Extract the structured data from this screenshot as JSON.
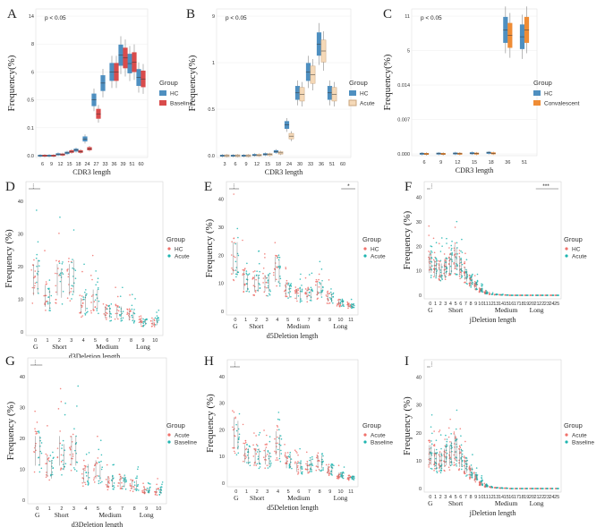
{
  "figure": {
    "colors": {
      "hc_blue": "#4e8fc0",
      "baseline_red": "#d94b4b",
      "acute_beige": "#f5d9b8",
      "conv_orange": "#ef8c35",
      "pt_red": "#f0706a",
      "pt_teal": "#1fb5b0"
    }
  },
  "chart_data": [
    {
      "id": "A",
      "letter": "A",
      "type": "boxplot",
      "title": "",
      "annotation": "p < 0.05",
      "xlabel": "CDR3 length",
      "ylabel": "Frequency(%)",
      "categories": [
        "6",
        "9",
        "12",
        "15",
        "18",
        "24",
        "27",
        "33",
        "36",
        "39",
        "51",
        "60"
      ],
      "yticks": [
        "0.0",
        "0.1",
        "0.5",
        "6",
        "8",
        "14"
      ],
      "legend": {
        "title": "Group",
        "entries": [
          "HC",
          "Baseline"
        ]
      },
      "series": [
        {
          "name": "HC",
          "color": "#4e8fc0",
          "medians": [
            0.0,
            0.0,
            0.01,
            0.02,
            0.04,
            0.12,
            0.4,
            0.52,
            0.6,
            0.72,
            0.66,
            0.56
          ]
        },
        {
          "name": "Baseline",
          "color": "#d94b4b",
          "medians": [
            0.0,
            0.0,
            0.008,
            0.03,
            0.03,
            0.05,
            0.3,
            null,
            0.6,
            0.7,
            0.67,
            0.55
          ]
        }
      ]
    },
    {
      "id": "B",
      "letter": "B",
      "type": "boxplot",
      "title": "",
      "annotation": "p < 0.05",
      "xlabel": "CDR3 length",
      "ylabel": "Frequency(%)",
      "categories": [
        "3",
        "6",
        "9",
        "12",
        "15",
        "18",
        "24",
        "30",
        "33",
        "36",
        "51",
        "60"
      ],
      "yticks": [
        "0.0",
        "0.5",
        "1",
        "9"
      ],
      "legend": {
        "title": "Group",
        "entries": [
          "HC",
          "Acute"
        ]
      },
      "series": [
        {
          "name": "HC",
          "color": "#4e8fc0",
          "medians": [
            0.0,
            0.0,
            0.0,
            0.005,
            0.01,
            0.03,
            0.22,
            0.45,
            0.6,
            0.8,
            0.45,
            null
          ]
        },
        {
          "name": "Acute",
          "color": "#f5d9b8",
          "medians": [
            0.0,
            0.0,
            0.0,
            0.004,
            0.008,
            0.02,
            0.14,
            0.44,
            0.58,
            0.75,
            0.44,
            null
          ]
        }
      ]
    },
    {
      "id": "C",
      "letter": "C",
      "type": "boxplot",
      "title": "",
      "annotation": "p < 0.05",
      "xlabel": "CDR3 length",
      "ylabel": "Frequency(%)",
      "categories": [
        "6",
        "9",
        "12",
        "15",
        "18",
        "36",
        "51"
      ],
      "yticks": [
        "0.000",
        "0.007",
        "0.014",
        "5",
        "11"
      ],
      "legend": {
        "title": "Group",
        "entries": [
          "HC",
          "Convalescent"
        ]
      },
      "series": [
        {
          "name": "HC",
          "color": "#4e8fc0",
          "medians": [
            0.001,
            0.002,
            0.003,
            0.005,
            0.008,
            0.9,
            0.85
          ]
        },
        {
          "name": "Convalescent",
          "color": "#ef8c35",
          "medians": [
            0.0,
            0.0,
            0.001,
            0.002,
            0.004,
            0.86,
            0.9
          ]
        }
      ]
    },
    {
      "id": "D",
      "letter": "D",
      "type": "scatter",
      "annotation": "⋮",
      "xlabel": "d3Deletion length",
      "ylabel": "Frequency (%)",
      "ylim": [
        0,
        45
      ],
      "yticks": [
        "0",
        "10",
        "20",
        "30",
        "40"
      ],
      "categories": [
        "0",
        "1",
        "2",
        "3",
        "4",
        "5",
        "6",
        "7",
        "8",
        "9",
        "10"
      ],
      "groups": [
        "G",
        "Short",
        "Medium",
        "Long"
      ],
      "legend": {
        "title": "Group",
        "entries": [
          "HC",
          "Acute"
        ]
      },
      "series": [
        {
          "name": "HC",
          "color": "#f0706a",
          "means": [
            16,
            11,
            16,
            16,
            8,
            10,
            6,
            6,
            5,
            3,
            3
          ]
        },
        {
          "name": "Acute",
          "color": "#1fb5b0",
          "means": [
            17,
            10,
            15,
            17,
            9,
            10,
            6,
            6,
            5,
            3,
            3
          ]
        }
      ]
    },
    {
      "id": "E",
      "letter": "E",
      "type": "scatter",
      "annotation": "⋮",
      "annotation2": "*",
      "xlabel": "d5Deletion length",
      "ylabel": "Frequency (%)",
      "ylim": [
        0,
        45
      ],
      "yticks": [
        "0",
        "10",
        "20",
        "30",
        "40"
      ],
      "categories": [
        "0",
        "1",
        "2",
        "3",
        "4",
        "5",
        "6",
        "7",
        "8",
        "9",
        "10",
        "11"
      ],
      "groups": [
        "G",
        "Short",
        "Medium",
        "Long"
      ],
      "legend": {
        "title": "Group",
        "entries": [
          "HC",
          "Acute"
        ]
      },
      "series": [
        {
          "name": "HC",
          "color": "#f0706a",
          "means": [
            19,
            11,
            10,
            10,
            15,
            8,
            6,
            6,
            8,
            5,
            3,
            2
          ]
        },
        {
          "name": "Acute",
          "color": "#1fb5b0",
          "means": [
            19,
            10,
            10,
            10,
            14,
            7,
            6,
            6,
            8,
            5,
            3,
            2
          ]
        }
      ]
    },
    {
      "id": "F",
      "letter": "F",
      "type": "scatter",
      "annotation": "⋮",
      "annotation2": "***",
      "xlabel": "jDeletion length",
      "ylabel": "Frequency (%)",
      "ylim": [
        0,
        45
      ],
      "yticks": [
        "0",
        "10",
        "20",
        "30",
        "40"
      ],
      "categories": [
        "0",
        "1",
        "2",
        "3",
        "4",
        "5",
        "6",
        "7",
        "8",
        "9",
        "10",
        "11",
        "12",
        "13",
        "14",
        "15",
        "16",
        "17",
        "18",
        "19",
        "20",
        "21",
        "22",
        "23",
        "24",
        "25"
      ],
      "groups": [
        "G",
        "Short",
        "Medium",
        "Long"
      ],
      "legend": {
        "title": "Group",
        "entries": [
          "HC",
          "Acute"
        ]
      },
      "series": [
        {
          "name": "HC",
          "color": "#f0706a",
          "means": [
            13,
            11,
            10,
            11,
            12,
            16,
            12,
            9,
            6,
            4,
            2,
            1,
            0.5,
            0.3,
            0.2,
            0.1,
            0,
            0,
            0,
            0,
            0,
            0,
            0,
            0,
            0,
            0
          ]
        },
        {
          "name": "Acute",
          "color": "#1fb5b0",
          "means": [
            13,
            11,
            10,
            12,
            13,
            15,
            11,
            8,
            6,
            4,
            2,
            1,
            0.5,
            0.3,
            0.2,
            0.1,
            0,
            0,
            0,
            0,
            0,
            0,
            0,
            0,
            0,
            0
          ]
        }
      ]
    },
    {
      "id": "G",
      "letter": "G",
      "type": "scatter",
      "annotation": "⋮",
      "xlabel": "d3Deletion length",
      "ylabel": "Frequency (%)",
      "ylim": [
        0,
        45
      ],
      "yticks": [
        "0",
        "10",
        "20",
        "30",
        "40"
      ],
      "categories": [
        "0",
        "1",
        "2",
        "3",
        "4",
        "5",
        "6",
        "7",
        "8",
        "9",
        "10"
      ],
      "groups": [
        "G",
        "Short",
        "Medium",
        "Long"
      ],
      "legend": {
        "title": "Group",
        "entries": [
          "Acute",
          "Baseline"
        ]
      },
      "series": [
        {
          "name": "Acute",
          "color": "#f0706a",
          "means": [
            16,
            11,
            16,
            16,
            8,
            10,
            6,
            6,
            5,
            3,
            3
          ]
        },
        {
          "name": "Baseline",
          "color": "#1fb5b0",
          "means": [
            16,
            10,
            14,
            16,
            9,
            9,
            6,
            6,
            5,
            3,
            3
          ]
        }
      ]
    },
    {
      "id": "H",
      "letter": "H",
      "type": "scatter",
      "annotation": "⋮",
      "xlabel": "d5Deletion length",
      "ylabel": "Frequency (%)",
      "ylim": [
        0,
        45
      ],
      "yticks": [
        "0",
        "10",
        "20",
        "30",
        "40"
      ],
      "categories": [
        "0",
        "1",
        "2",
        "3",
        "4",
        "5",
        "6",
        "7",
        "8",
        "9",
        "10",
        "11"
      ],
      "groups": [
        "G",
        "Short",
        "Medium",
        "Long"
      ],
      "legend": {
        "title": "Group",
        "entries": [
          "Acute",
          "Baseline"
        ]
      },
      "series": [
        {
          "name": "Acute",
          "color": "#f0706a",
          "means": [
            19,
            11,
            10,
            10,
            15,
            8,
            6,
            6,
            8,
            5,
            3,
            2
          ]
        },
        {
          "name": "Baseline",
          "color": "#1fb5b0",
          "means": [
            18,
            10,
            10,
            9,
            14,
            8,
            6,
            7,
            8,
            5,
            3,
            2
          ]
        }
      ]
    },
    {
      "id": "I",
      "letter": "I",
      "type": "scatter",
      "annotation": "⋮",
      "xlabel": "jDeletion length",
      "ylabel": "Frequency (%)",
      "ylim": [
        0,
        45
      ],
      "yticks": [
        "0",
        "10",
        "20",
        "30",
        "40"
      ],
      "categories": [
        "0",
        "1",
        "2",
        "3",
        "4",
        "5",
        "6",
        "7",
        "8",
        "9",
        "10",
        "11",
        "12",
        "13",
        "14",
        "15",
        "16",
        "17",
        "18",
        "19",
        "20",
        "21",
        "22",
        "23",
        "24",
        "25"
      ],
      "groups": [
        "G",
        "Short",
        "Medium",
        "Long"
      ],
      "legend": {
        "title": "Group",
        "entries": [
          "Acute",
          "Baseline"
        ]
      },
      "series": [
        {
          "name": "Acute",
          "color": "#f0706a",
          "means": [
            12,
            11,
            10,
            11,
            12,
            15,
            11,
            8,
            6,
            4,
            2,
            1,
            0.5,
            0.3,
            0.2,
            0.1,
            0,
            0,
            0,
            0,
            0,
            0,
            0,
            0,
            0,
            0
          ]
        },
        {
          "name": "Baseline",
          "color": "#1fb5b0",
          "means": [
            12,
            10,
            10,
            12,
            13,
            14,
            11,
            8,
            6,
            4,
            2,
            1,
            0.5,
            0.3,
            0.2,
            0.1,
            0,
            0,
            0,
            0,
            0,
            0,
            0,
            0,
            0,
            0
          ]
        }
      ]
    }
  ]
}
